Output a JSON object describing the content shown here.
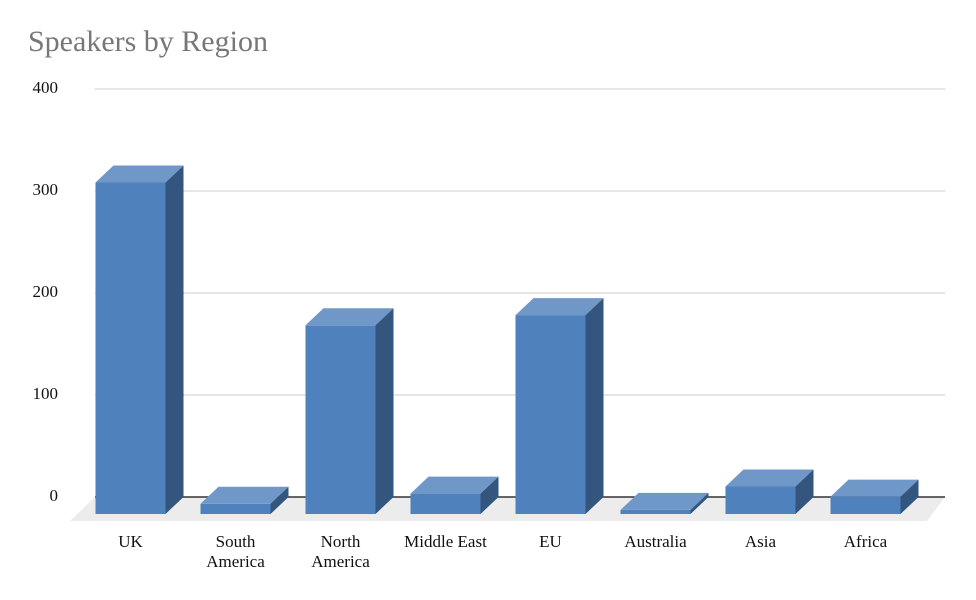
{
  "chart_data": {
    "type": "bar3d",
    "title": "Speakers by Region",
    "categories": [
      "UK",
      "South America",
      "North America",
      "Middle East",
      "EU",
      "Australia",
      "Asia",
      "Africa"
    ],
    "values": [
      325,
      10,
      185,
      20,
      195,
      4,
      27,
      17
    ],
    "color": "#4f81bd",
    "ylim": [
      0,
      400
    ],
    "yticks": [
      0,
      100,
      200,
      300,
      400
    ],
    "grid": true
  }
}
